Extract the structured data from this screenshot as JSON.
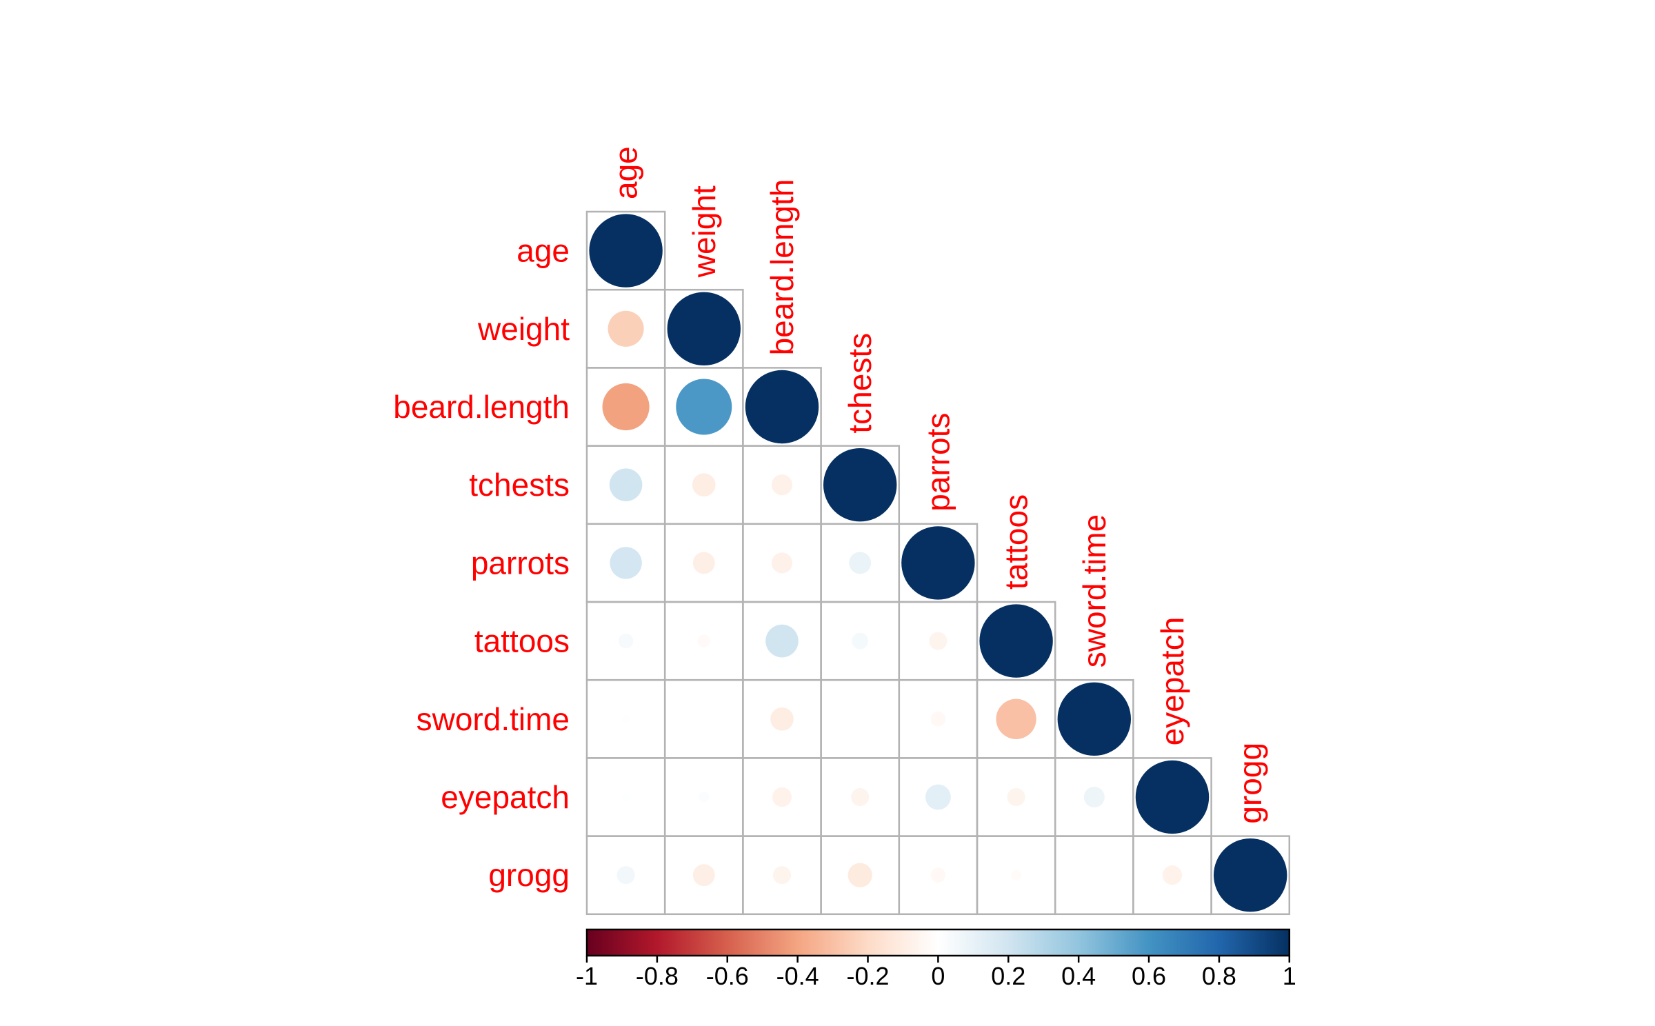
{
  "chart_data": {
    "type": "heatmap",
    "style": "lower-triangle correlation matrix, circles sized by |r|",
    "variables": [
      "age",
      "weight",
      "beard.length",
      "tchests",
      "parrots",
      "tattoos",
      "sword.time",
      "eyepatch",
      "grogg"
    ],
    "matrix": [
      [
        1.0,
        -0.24,
        -0.41,
        0.2,
        0.19,
        0.04,
        0.01,
        0.01,
        0.06
      ],
      [
        -0.24,
        1.0,
        0.58,
        -0.1,
        -0.09,
        -0.03,
        0.0,
        0.02,
        -0.09
      ],
      [
        -0.41,
        0.58,
        1.0,
        -0.08,
        -0.08,
        0.2,
        -0.1,
        -0.07,
        -0.06
      ],
      [
        0.2,
        -0.1,
        -0.08,
        1.0,
        0.09,
        0.05,
        0.0,
        -0.06,
        -0.11
      ],
      [
        0.19,
        -0.09,
        -0.08,
        0.09,
        1.0,
        -0.06,
        -0.04,
        0.12,
        -0.04
      ],
      [
        0.04,
        -0.03,
        0.2,
        0.05,
        -0.06,
        1.0,
        -0.3,
        -0.06,
        -0.02
      ],
      [
        0.01,
        0.0,
        -0.1,
        0.0,
        -0.04,
        -0.3,
        1.0,
        0.08,
        0.0
      ],
      [
        0.01,
        0.02,
        -0.07,
        -0.06,
        0.12,
        -0.06,
        0.08,
        1.0,
        -0.07
      ],
      [
        0.06,
        -0.09,
        -0.06,
        -0.11,
        -0.04,
        -0.02,
        0.0,
        -0.07,
        1.0
      ]
    ],
    "color_scale": {
      "min": -1,
      "max": 1,
      "stops": [
        "#67001f",
        "#b2182b",
        "#d6604d",
        "#f4a582",
        "#fddbc7",
        "#ffffff",
        "#d1e5f0",
        "#92c5de",
        "#4393c3",
        "#2166ac",
        "#053061"
      ],
      "ticks": [
        "-1",
        "-0.8",
        "-0.6",
        "-0.4",
        "-0.2",
        "0",
        "0.2",
        "0.4",
        "0.6",
        "0.8",
        "1"
      ]
    },
    "label_color": "#ff0000",
    "grid_color": "#b3b3b3"
  }
}
